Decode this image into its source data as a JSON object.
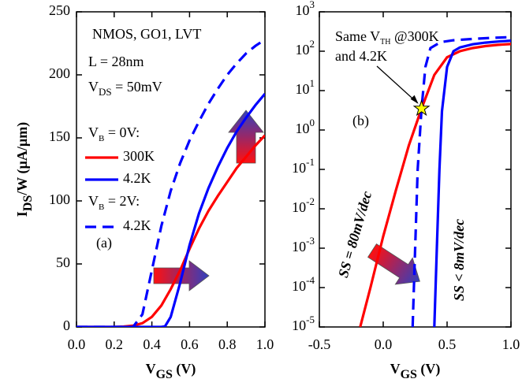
{
  "chart_data": [
    {
      "type": "line",
      "panel": "(a)",
      "xlabel": [
        "V",
        "GS",
        " (V)"
      ],
      "ylabel": [
        "I",
        "DS",
        "/W (µA/µm)"
      ],
      "xlim": [
        0,
        1
      ],
      "ylim": [
        0,
        250
      ],
      "xticks": [
        {
          "value": 0,
          "label": "0.0"
        },
        0.2,
        0.4,
        0.6,
        0.8,
        {
          "value": 1,
          "label": "1.0"
        }
      ],
      "yticks": [
        0,
        50,
        100,
        150,
        200,
        250
      ],
      "annotations": [
        [
          "NMOS, GO1, LVT"
        ],
        [
          "L = 28nm"
        ],
        [
          "V",
          "DS",
          " = 50mV"
        ]
      ],
      "legend_headers": [
        [
          "V",
          "B",
          " = 0V:"
        ],
        [
          "V",
          "B",
          " = 2V:"
        ]
      ],
      "series": [
        {
          "name": "300K",
          "color": "#ff0000",
          "line_style": "solid",
          "x": [
            0,
            0.1,
            0.2,
            0.25,
            0.3,
            0.35,
            0.4,
            0.45,
            0.5,
            0.55,
            0.6,
            0.65,
            0.7,
            0.75,
            0.8,
            0.85,
            0.9,
            0.95,
            1.0
          ],
          "values": [
            0,
            0,
            0,
            0.3,
            1,
            3,
            8,
            17,
            30,
            45,
            62,
            78,
            92,
            104,
            115,
            126,
            135,
            144,
            152
          ]
        },
        {
          "name": "4.2K",
          "color": "#0000ff",
          "line_style": "solid",
          "x": [
            0,
            0.2,
            0.45,
            0.47,
            0.5,
            0.55,
            0.6,
            0.65,
            0.7,
            0.75,
            0.8,
            0.85,
            0.9,
            0.95,
            1.0
          ],
          "values": [
            0,
            0,
            0,
            0.5,
            8,
            35,
            65,
            90,
            110,
            127,
            142,
            155,
            166,
            176,
            185
          ]
        },
        {
          "name": "4.2K",
          "color": "#0000ff",
          "line_style": "dashed",
          "x": [
            0,
            0.2,
            0.3,
            0.35,
            0.4,
            0.45,
            0.5,
            0.55,
            0.6,
            0.65,
            0.7,
            0.75,
            0.8,
            0.85,
            0.9,
            0.95,
            1.0
          ],
          "values": [
            0,
            0,
            0,
            10,
            45,
            80,
            108,
            130,
            148,
            163,
            177,
            189,
            200,
            209,
            217,
            223,
            228
          ]
        }
      ]
    },
    {
      "type": "line",
      "panel": "(b)",
      "yscale": "log",
      "xlabel": [
        "V",
        "GS",
        " (V)"
      ],
      "xlim": [
        -0.5,
        1
      ],
      "ylim": [
        1e-05,
        1000
      ],
      "xticks": [
        -0.5,
        {
          "value": 0,
          "label": "0.0"
        },
        0.5,
        {
          "value": 1,
          "label": "1.0"
        }
      ],
      "yticks": [
        {
          "value": 1e-05,
          "label": "10",
          "exponent": "-5"
        },
        {
          "value": 0.0001,
          "label": "10",
          "exponent": "-4"
        },
        {
          "value": 0.001,
          "label": "10",
          "exponent": "-3"
        },
        {
          "value": 0.01,
          "label": "10",
          "exponent": "-2"
        },
        {
          "value": 0.1,
          "label": "10",
          "exponent": "-1"
        },
        {
          "value": 1,
          "label": "10",
          "exponent": "0"
        },
        {
          "value": 10,
          "label": "10",
          "exponent": "1"
        },
        {
          "value": 100,
          "label": "10",
          "exponent": "2"
        },
        {
          "value": 1000,
          "label": "10",
          "exponent": "3"
        }
      ],
      "annotations": [
        [
          "Same V",
          "TH",
          " @300K"
        ],
        [
          "and 4.2K"
        ],
        [
          "SS = 80mV/dec"
        ],
        [
          "SS < 8mV/dec"
        ]
      ],
      "marker": {
        "x": 0.3,
        "y": 3.5
      },
      "series": [
        {
          "name": "300K",
          "color": "#ff0000",
          "line_style": "solid",
          "x": [
            -0.18,
            -0.1,
            0.0,
            0.1,
            0.2,
            0.3,
            0.4,
            0.5,
            0.6,
            0.7,
            0.8,
            0.9,
            1.0
          ],
          "values": [
            1e-05,
            0.0001,
            0.002,
            0.03,
            0.4,
            3.5,
            25,
            70,
            100,
            120,
            135,
            145,
            152
          ]
        },
        {
          "name": "4.2K",
          "color": "#0000ff",
          "line_style": "solid",
          "x": [
            0.4,
            0.42,
            0.44,
            0.46,
            0.5,
            0.55,
            0.6,
            0.7,
            0.8,
            0.9,
            1.0
          ],
          "values": [
            1e-05,
            0.001,
            0.1,
            3,
            40,
            100,
            125,
            150,
            165,
            176,
            185
          ]
        },
        {
          "name": "4.2K",
          "color": "#0000ff",
          "line_style": "dashed",
          "x": [
            0.23,
            0.25,
            0.27,
            0.3,
            0.33,
            0.37,
            0.45,
            0.55,
            0.7,
            0.85,
            1.0
          ],
          "values": [
            1e-05,
            0.001,
            0.1,
            3.5,
            40,
            120,
            170,
            190,
            205,
            218,
            228
          ]
        }
      ]
    }
  ]
}
